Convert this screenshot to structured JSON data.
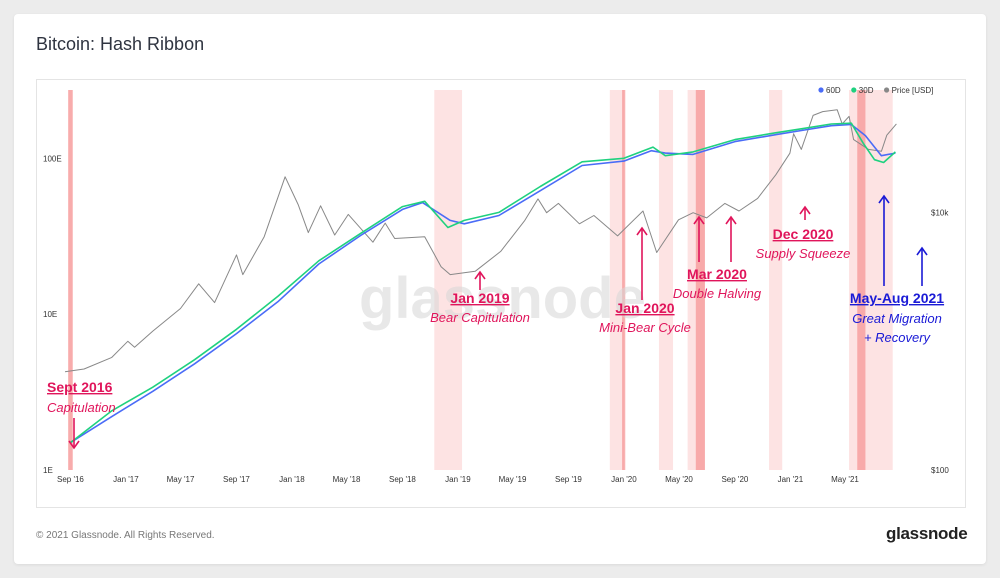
{
  "title": "Bitcoin: Hash Ribbon",
  "footer": {
    "copyright": "© 2021 Glassnode. All Rights Reserved.",
    "brand": "glassnode"
  },
  "watermark": "glassnode",
  "chart_data": {
    "type": "line",
    "title": "Bitcoin: Hash Ribbon",
    "x_ticks": [
      "Sep '16",
      "Jan '17",
      "May '17",
      "Sep '17",
      "Jan '18",
      "May '18",
      "Sep '18",
      "Jan '19",
      "May '19",
      "Sep '19",
      "Jan '20",
      "May '20",
      "Sep '20",
      "Jan '21",
      "May '21"
    ],
    "x_range": [
      "2016-08-20",
      "2021-09-10"
    ],
    "y_left_ticks": [
      "1E",
      "10E",
      "100E"
    ],
    "y_left_scale": "log",
    "y_left_range_EH": [
      1,
      300
    ],
    "y_right_ticks": [
      "$100",
      "$10k"
    ],
    "y_right_scale": "log",
    "y_right_range_usd": [
      100,
      100000
    ],
    "legend": {
      "position": "top-right",
      "items": [
        {
          "name": "60D",
          "color": "#4a6cf7"
        },
        {
          "name": "30D",
          "color": "#1fd17f"
        },
        {
          "name": "Price [USD]",
          "color": "#888888"
        }
      ]
    },
    "series": [
      {
        "name": "60D",
        "axis": "left",
        "color": "#4a6cf7",
        "points": [
          [
            "2016-09-01",
            1.5
          ],
          [
            "2016-12-01",
            2.2
          ],
          [
            "2017-03-01",
            3.2
          ],
          [
            "2017-06-01",
            4.8
          ],
          [
            "2017-09-01",
            7.5
          ],
          [
            "2017-12-01",
            12
          ],
          [
            "2018-03-01",
            21
          ],
          [
            "2018-06-01",
            32
          ],
          [
            "2018-09-01",
            47
          ],
          [
            "2018-10-15",
            52
          ],
          [
            "2018-12-15",
            40
          ],
          [
            "2019-01-15",
            38
          ],
          [
            "2019-04-01",
            43
          ],
          [
            "2019-07-01",
            62
          ],
          [
            "2019-10-01",
            90
          ],
          [
            "2020-01-01",
            96
          ],
          [
            "2020-03-01",
            112
          ],
          [
            "2020-04-01",
            108
          ],
          [
            "2020-06-01",
            106
          ],
          [
            "2020-09-01",
            128
          ],
          [
            "2020-12-01",
            142
          ],
          [
            "2021-02-01",
            152
          ],
          [
            "2021-04-01",
            162
          ],
          [
            "2021-05-15",
            165
          ],
          [
            "2021-06-15",
            140
          ],
          [
            "2021-07-20",
            104
          ],
          [
            "2021-08-20",
            108
          ]
        ]
      },
      {
        "name": "30D",
        "axis": "left",
        "color": "#1fd17f",
        "points": [
          [
            "2016-09-01",
            1.5
          ],
          [
            "2016-12-01",
            2.4
          ],
          [
            "2017-03-01",
            3.4
          ],
          [
            "2017-06-01",
            5.1
          ],
          [
            "2017-09-01",
            8
          ],
          [
            "2017-12-01",
            13
          ],
          [
            "2018-03-01",
            22
          ],
          [
            "2018-06-01",
            33
          ],
          [
            "2018-09-01",
            49
          ],
          [
            "2018-10-20",
            53
          ],
          [
            "2018-12-10",
            36
          ],
          [
            "2019-01-15",
            40
          ],
          [
            "2019-04-01",
            45
          ],
          [
            "2019-07-01",
            66
          ],
          [
            "2019-10-01",
            95
          ],
          [
            "2020-01-01",
            100
          ],
          [
            "2020-03-05",
            118
          ],
          [
            "2020-04-01",
            104
          ],
          [
            "2020-06-01",
            110
          ],
          [
            "2020-09-01",
            132
          ],
          [
            "2020-12-01",
            146
          ],
          [
            "2021-02-01",
            156
          ],
          [
            "2021-04-01",
            166
          ],
          [
            "2021-05-15",
            168
          ],
          [
            "2021-06-10",
            125
          ],
          [
            "2021-07-05",
            98
          ],
          [
            "2021-07-25",
            94
          ],
          [
            "2021-08-20",
            110
          ]
        ]
      },
      {
        "name": "Price [USD]",
        "axis": "right",
        "color": "#888888",
        "points": [
          [
            "2016-08-20",
            580
          ],
          [
            "2016-10-01",
            610
          ],
          [
            "2016-12-01",
            750
          ],
          [
            "2017-01-05",
            1000
          ],
          [
            "2017-01-20",
            900
          ],
          [
            "2017-03-01",
            1200
          ],
          [
            "2017-05-01",
            1800
          ],
          [
            "2017-06-10",
            2800
          ],
          [
            "2017-07-15",
            2000
          ],
          [
            "2017-09-01",
            4700
          ],
          [
            "2017-09-15",
            3300
          ],
          [
            "2017-11-01",
            6500
          ],
          [
            "2017-12-17",
            19000
          ],
          [
            "2018-01-15",
            11500
          ],
          [
            "2018-02-06",
            7000
          ],
          [
            "2018-03-05",
            11300
          ],
          [
            "2018-04-05",
            6700
          ],
          [
            "2018-05-05",
            9700
          ],
          [
            "2018-06-28",
            5900
          ],
          [
            "2018-07-25",
            8300
          ],
          [
            "2018-08-15",
            6300
          ],
          [
            "2018-10-20",
            6500
          ],
          [
            "2018-11-25",
            3800
          ],
          [
            "2018-12-15",
            3300
          ],
          [
            "2019-02-08",
            3500
          ],
          [
            "2019-04-05",
            5000
          ],
          [
            "2019-05-28",
            8700
          ],
          [
            "2019-06-26",
            12800
          ],
          [
            "2019-07-15",
            10000
          ],
          [
            "2019-08-10",
            11800
          ],
          [
            "2019-09-25",
            8200
          ],
          [
            "2019-10-27",
            9500
          ],
          [
            "2019-12-18",
            6600
          ],
          [
            "2020-02-12",
            10300
          ],
          [
            "2020-03-13",
            4900
          ],
          [
            "2020-04-30",
            8800
          ],
          [
            "2020-06-01",
            10000
          ],
          [
            "2020-07-01",
            9100
          ],
          [
            "2020-08-10",
            11800
          ],
          [
            "2020-09-10",
            10300
          ],
          [
            "2020-10-21",
            12900
          ],
          [
            "2020-11-30",
            19700
          ],
          [
            "2020-12-31",
            29000
          ],
          [
            "2021-01-08",
            41000
          ],
          [
            "2021-01-25",
            31000
          ],
          [
            "2021-02-20",
            57000
          ],
          [
            "2021-03-13",
            61000
          ],
          [
            "2021-04-14",
            63000
          ],
          [
            "2021-04-25",
            49000
          ],
          [
            "2021-05-10",
            56000
          ],
          [
            "2021-05-20",
            37000
          ],
          [
            "2021-06-22",
            31000
          ],
          [
            "2021-07-20",
            30000
          ],
          [
            "2021-08-01",
            40000
          ],
          [
            "2021-08-22",
            49000
          ]
        ]
      }
    ],
    "capitulation_bands": [
      {
        "start": "2016-08-27",
        "end": "2016-09-06",
        "emphasis": true
      },
      {
        "start": "2018-11-10",
        "end": "2019-01-10",
        "emphasis": false
      },
      {
        "start": "2019-12-01",
        "end": "2020-01-05",
        "emphasis": false
      },
      {
        "start": "2019-12-28",
        "end": "2020-01-03",
        "emphasis": true
      },
      {
        "start": "2020-03-18",
        "end": "2020-04-18",
        "emphasis": false
      },
      {
        "start": "2020-05-20",
        "end": "2020-06-27",
        "emphasis": false
      },
      {
        "start": "2020-06-07",
        "end": "2020-06-27",
        "emphasis": true
      },
      {
        "start": "2020-11-15",
        "end": "2020-12-14",
        "emphasis": false
      },
      {
        "start": "2021-05-10",
        "end": "2021-08-14",
        "emphasis": false
      },
      {
        "start": "2021-05-28",
        "end": "2021-06-15",
        "emphasis": true
      }
    ],
    "annotations": [
      {
        "title": "Sept 2016",
        "subtitle": "Capitulation",
        "color": "#e0155b",
        "arrow": "down",
        "at": "2016-09-01",
        "anchor": "left"
      },
      {
        "title": "Jan 2019",
        "subtitle": "Bear Capitulation",
        "color": "#e0155b",
        "arrow": "up",
        "at": "2019-01-01",
        "anchor": "center"
      },
      {
        "title": "Jan 2020",
        "subtitle": "Mini-Bear Cycle",
        "color": "#e0155b",
        "arrow": "up",
        "at": "2020-01-01",
        "anchor": "center"
      },
      {
        "title": "Mar 2020",
        "subtitle": "Double Halving",
        "color": "#e0155b",
        "arrow": "up",
        "at": "2020-04-25",
        "anchor": "center",
        "extra_arrow_at": "2020-06-13"
      },
      {
        "title": "Dec 2020",
        "subtitle": "Supply Squeeze",
        "color": "#e0155b",
        "arrow": "up",
        "at": "2020-12-10",
        "anchor": "center"
      },
      {
        "title": "May-Aug 2021",
        "subtitle": "Great Migration",
        "subtitle2": "+ Recovery",
        "color": "#1a1ad6",
        "arrow": "up",
        "at": "2021-05-25",
        "anchor": "center",
        "extra_arrow_at": "2021-08-15"
      }
    ]
  }
}
